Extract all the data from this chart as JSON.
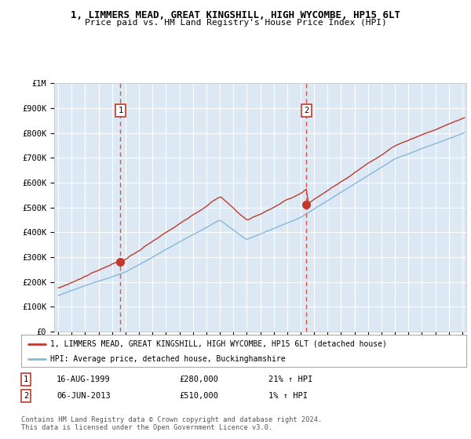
{
  "title_line1": "1, LIMMERS MEAD, GREAT KINGSHILL, HIGH WYCOMBE, HP15 6LT",
  "title_line2": "Price paid vs. HM Land Registry's House Price Index (HPI)",
  "red_label": "1, LIMMERS MEAD, GREAT KINGSHILL, HIGH WYCOMBE, HP15 6LT (detached house)",
  "blue_label": "HPI: Average price, detached house, Buckinghamshire",
  "footnote": "Contains HM Land Registry data © Crown copyright and database right 2024.\nThis data is licensed under the Open Government Licence v3.0.",
  "sale1_date": "16-AUG-1999",
  "sale1_price": 280000,
  "sale1_hpi": "21%",
  "sale1_year": 1999.62,
  "sale2_date": "06-JUN-2013",
  "sale2_price": 510000,
  "sale2_hpi": "1%",
  "sale2_year": 2013.43,
  "background_color": "#dce9f5",
  "grid_color": "#ffffff",
  "red_line_color": "#c0392b",
  "blue_line_color": "#85b8d8",
  "dashed_color": "#e74c3c",
  "marker_color": "#c0392b",
  "ylim": [
    0,
    1000000
  ],
  "xlim_start": 1994.7,
  "xlim_end": 2025.3,
  "yticks": [
    0,
    100000,
    200000,
    300000,
    400000,
    500000,
    600000,
    700000,
    800000,
    900000,
    1000000
  ],
  "ytick_labels": [
    "£0",
    "£100K",
    "£200K",
    "£300K",
    "£400K",
    "£500K",
    "£600K",
    "£700K",
    "£800K",
    "£900K",
    "£1M"
  ],
  "table_row1": [
    "1",
    "16-AUG-1999",
    "£280,000",
    "21% ↑ HPI"
  ],
  "table_row2": [
    "2",
    "06-JUN-2013",
    "£510,000",
    "1% ↑ HPI"
  ]
}
